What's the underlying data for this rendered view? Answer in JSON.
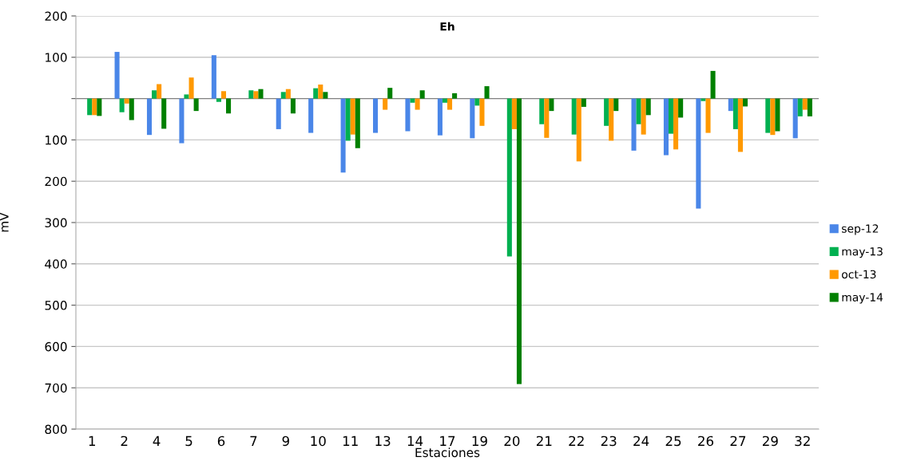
{
  "chart_data": {
    "type": "bar",
    "title": "Eh",
    "xlabel": "Estaciones",
    "ylabel": "mV",
    "categories": [
      "1",
      "2",
      "4",
      "5",
      "6",
      "7",
      "9",
      "10",
      "11",
      "13",
      "14",
      "17",
      "19",
      "20",
      "21",
      "22",
      "23",
      "24",
      "25",
      "26",
      "27",
      "29",
      "32"
    ],
    "series": [
      {
        "name": "sep-12",
        "color": "#4a86e8",
        "values": [
          null,
          113,
          -88,
          -108,
          105,
          null,
          -74,
          -83,
          -179,
          -83,
          -79,
          -89,
          -96,
          null,
          null,
          null,
          null,
          -126,
          -137,
          -266,
          -30,
          null,
          -96
        ]
      },
      {
        "name": "may-13",
        "color": "#00b050",
        "values": [
          -40,
          -33,
          20,
          10,
          -8,
          20,
          16,
          25,
          -102,
          null,
          -10,
          -10,
          -17,
          -382,
          -62,
          -87,
          -66,
          -62,
          -85,
          -6,
          -74,
          -83,
          -43
        ]
      },
      {
        "name": "oct-13",
        "color": "#ff9900",
        "values": [
          -40,
          -12,
          35,
          51,
          18,
          18,
          23,
          34,
          -87,
          -27,
          -27,
          -27,
          -66,
          -74,
          -95,
          -152,
          -102,
          -87,
          -123,
          -83,
          -129,
          -88,
          -27
        ]
      },
      {
        "name": "may-14",
        "color": "#008000",
        "values": [
          -42,
          -52,
          -73,
          -30,
          -36,
          23,
          -36,
          16,
          -120,
          26,
          20,
          13,
          30,
          -691,
          -30,
          -20,
          -30,
          -40,
          -46,
          67,
          -19,
          -79,
          -43
        ]
      }
    ],
    "ylim": [
      -800,
      200
    ],
    "yticks": [
      200,
      100,
      {
        "value": 0,
        "label": null
      },
      {
        "value": -100,
        "label": "100"
      },
      {
        "value": -200,
        "label": "200"
      },
      {
        "value": -300,
        "label": "300"
      },
      {
        "value": -400,
        "label": "400"
      },
      {
        "value": -500,
        "label": "500"
      },
      {
        "value": -600,
        "label": "600"
      },
      {
        "value": -700,
        "label": "700"
      },
      {
        "value": -800,
        "label": "800"
      }
    ],
    "grid": "y",
    "legend": "right"
  }
}
